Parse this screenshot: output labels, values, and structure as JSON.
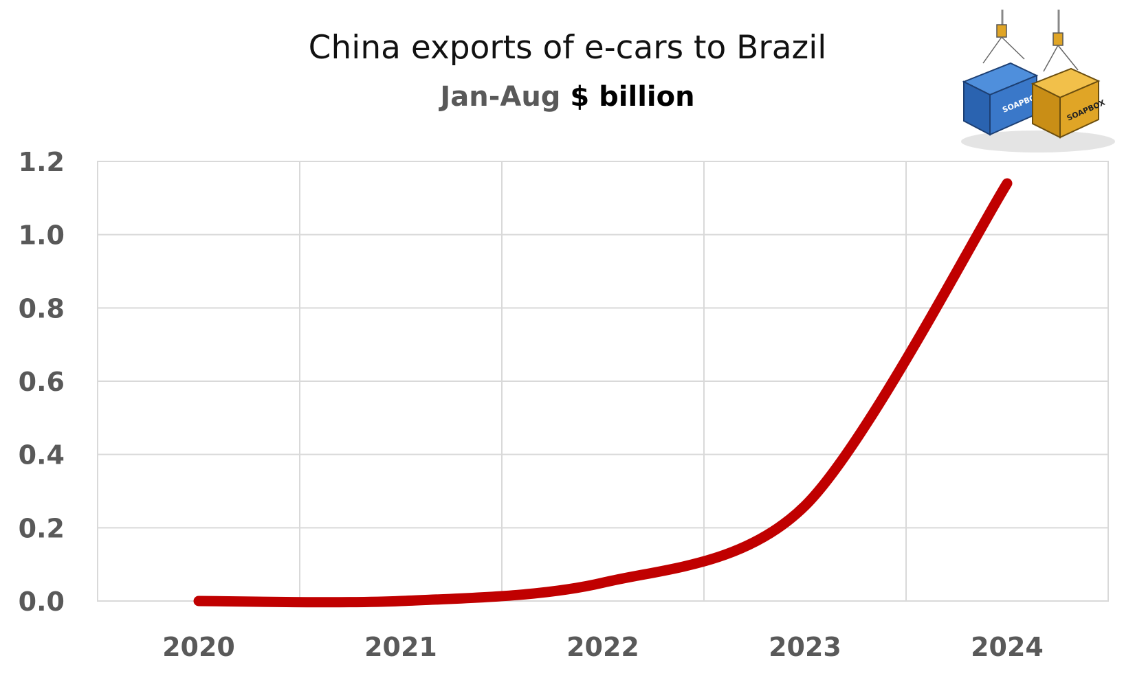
{
  "chart_data": {
    "type": "line",
    "title": "China exports of e-cars to Brazil",
    "subtitle": {
      "part1": "Jan-Aug",
      "part2": "$ billion"
    },
    "categories": [
      "2020",
      "2021",
      "2022",
      "2023",
      "2024"
    ],
    "series": [
      {
        "values": [
          0.0,
          0.0,
          0.05,
          0.26,
          1.14
        ],
        "color": "#c00000"
      }
    ],
    "ylim": [
      0,
      1.2
    ],
    "yticks": [
      "0.0",
      "0.2",
      "0.4",
      "0.6",
      "0.8",
      "1.0",
      "1.2"
    ],
    "grid": true,
    "legend": "none"
  },
  "logo": {
    "label_left": "SOAPBOX",
    "label_right": "SOAPBOX",
    "color_left": "#2f6fbf",
    "color_right": "#e0a526"
  }
}
